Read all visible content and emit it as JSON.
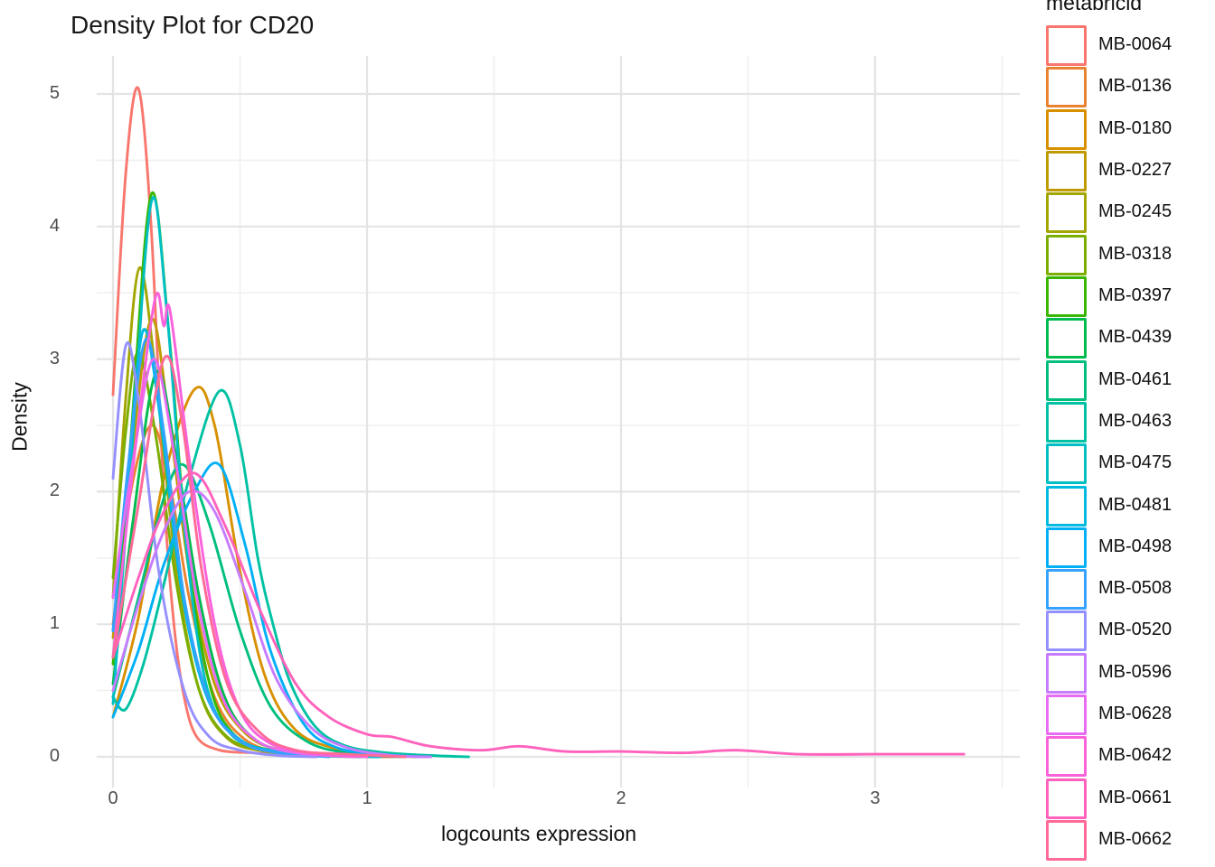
{
  "title": "Density Plot for CD20",
  "axes": {
    "x": {
      "label": "logcounts expression",
      "major_ticks": [
        0,
        1,
        2,
        3
      ],
      "minor_ticks": [
        0.5,
        1.5,
        2.5,
        3.5
      ]
    },
    "y": {
      "label": "Density",
      "major_ticks": [
        0,
        1,
        2,
        3,
        4,
        5
      ],
      "minor_ticks": [
        0.5,
        1.5,
        2.5,
        3.5,
        4.5
      ]
    }
  },
  "legend": {
    "title": "metabricid",
    "items": [
      "MB-0064",
      "MB-0136",
      "MB-0180",
      "MB-0227",
      "MB-0245",
      "MB-0318",
      "MB-0397",
      "MB-0439",
      "MB-0461",
      "MB-0463",
      "MB-0475",
      "MB-0481",
      "MB-0498",
      "MB-0508",
      "MB-0520",
      "MB-0596",
      "MB-0628",
      "MB-0642",
      "MB-0661",
      "MB-0662"
    ]
  },
  "colors": {
    "grid_major": "#e4e4e4",
    "grid_minor": "#f0f0f0",
    "tick_label": "#4d4d4d",
    "text": "#111111"
  },
  "chart_data": {
    "type": "line",
    "title": "Density Plot for CD20",
    "xlabel": "logcounts expression",
    "ylabel": "Density",
    "xlim": [
      -0.06,
      3.57
    ],
    "ylim": [
      -0.23,
      5.29
    ],
    "grid": true,
    "legend_title": "metabricid",
    "legend_position": "right",
    "series": [
      {
        "name": "MB-0064",
        "color": "#F8766D",
        "points": [
          [
            0,
            2.73
          ],
          [
            0.05,
            4.4
          ],
          [
            0.1,
            5.04
          ],
          [
            0.15,
            4.0
          ],
          [
            0.2,
            2.0
          ],
          [
            0.24,
            1.0
          ],
          [
            0.28,
            0.45
          ],
          [
            0.33,
            0.15
          ],
          [
            0.42,
            0.05
          ],
          [
            0.55,
            0.03
          ],
          [
            0.72,
            0.01
          ],
          [
            0.95,
            0.005
          ],
          [
            1.1,
            0
          ]
        ]
      },
      {
        "name": "MB-0136",
        "color": "#EA8331",
        "points": [
          [
            0,
            1.0
          ],
          [
            0.07,
            2.0
          ],
          [
            0.15,
            2.5
          ],
          [
            0.22,
            2.1
          ],
          [
            0.3,
            1.2
          ],
          [
            0.4,
            0.45
          ],
          [
            0.52,
            0.13
          ],
          [
            0.68,
            0.03
          ],
          [
            0.9,
            0.01
          ],
          [
            1.1,
            0
          ]
        ]
      },
      {
        "name": "MB-0180",
        "color": "#D89000",
        "points": [
          [
            0,
            0.3
          ],
          [
            0.1,
            1.05
          ],
          [
            0.2,
            2.1
          ],
          [
            0.32,
            2.77
          ],
          [
            0.4,
            2.5
          ],
          [
            0.5,
            1.4
          ],
          [
            0.6,
            0.6
          ],
          [
            0.72,
            0.2
          ],
          [
            0.88,
            0.06
          ],
          [
            1.05,
            0.01
          ],
          [
            1.25,
            0
          ]
        ]
      },
      {
        "name": "MB-0227",
        "color": "#C09B00",
        "points": [
          [
            0,
            0.9
          ],
          [
            0.07,
            2.2
          ],
          [
            0.15,
            3.3
          ],
          [
            0.22,
            2.55
          ],
          [
            0.3,
            1.4
          ],
          [
            0.4,
            0.55
          ],
          [
            0.52,
            0.18
          ],
          [
            0.66,
            0.05
          ],
          [
            0.85,
            0.01
          ],
          [
            1.05,
            0
          ]
        ]
      },
      {
        "name": "MB-0245",
        "color": "#A3A500",
        "points": [
          [
            0,
            1.2
          ],
          [
            0.05,
            2.7
          ],
          [
            0.105,
            3.69
          ],
          [
            0.17,
            2.85
          ],
          [
            0.25,
            1.4
          ],
          [
            0.34,
            0.5
          ],
          [
            0.45,
            0.14
          ],
          [
            0.6,
            0.04
          ],
          [
            0.8,
            0.01
          ],
          [
            1.0,
            0
          ]
        ]
      },
      {
        "name": "MB-0318",
        "color": "#7CAE00",
        "points": [
          [
            0,
            1.35
          ],
          [
            0.05,
            2.45
          ],
          [
            0.1,
            3.05
          ],
          [
            0.17,
            2.4
          ],
          [
            0.25,
            1.3
          ],
          [
            0.34,
            0.5
          ],
          [
            0.45,
            0.15
          ],
          [
            0.6,
            0.05
          ],
          [
            0.78,
            0.01
          ],
          [
            1.0,
            0
          ]
        ]
      },
      {
        "name": "MB-0397",
        "color": "#39B600",
        "points": [
          [
            0,
            0.7
          ],
          [
            0.07,
            2.4
          ],
          [
            0.15,
            4.24
          ],
          [
            0.22,
            3.2
          ],
          [
            0.29,
            1.6
          ],
          [
            0.38,
            0.55
          ],
          [
            0.48,
            0.16
          ],
          [
            0.62,
            0.05
          ],
          [
            0.82,
            0.01
          ],
          [
            1.05,
            0
          ]
        ]
      },
      {
        "name": "MB-0439",
        "color": "#00BB4E",
        "points": [
          [
            0,
            0.55
          ],
          [
            0.08,
            1.8
          ],
          [
            0.17,
            2.9
          ],
          [
            0.25,
            2.25
          ],
          [
            0.34,
            1.2
          ],
          [
            0.44,
            0.45
          ],
          [
            0.56,
            0.13
          ],
          [
            0.72,
            0.03
          ],
          [
            0.95,
            0.01
          ],
          [
            1.15,
            0
          ]
        ]
      },
      {
        "name": "MB-0461",
        "color": "#00BF7D",
        "points": [
          [
            0,
            0.45
          ],
          [
            0.1,
            1.2
          ],
          [
            0.2,
            1.95
          ],
          [
            0.28,
            2.2
          ],
          [
            0.38,
            1.75
          ],
          [
            0.5,
            0.95
          ],
          [
            0.62,
            0.38
          ],
          [
            0.76,
            0.12
          ],
          [
            0.92,
            0.03
          ],
          [
            1.15,
            0
          ]
        ]
      },
      {
        "name": "MB-0463",
        "color": "#00C1A3",
        "points": [
          [
            0,
            0.45
          ],
          [
            0.05,
            0.36
          ],
          [
            0.12,
            0.7
          ],
          [
            0.2,
            1.3
          ],
          [
            0.3,
            2.1
          ],
          [
            0.42,
            2.76
          ],
          [
            0.5,
            2.35
          ],
          [
            0.57,
            1.5
          ],
          [
            0.63,
            1.0
          ],
          [
            0.7,
            0.55
          ],
          [
            0.8,
            0.22
          ],
          [
            0.92,
            0.08
          ],
          [
            1.08,
            0.03
          ],
          [
            1.25,
            0.01
          ],
          [
            1.4,
            0
          ]
        ]
      },
      {
        "name": "MB-0475",
        "color": "#00BFC4",
        "points": [
          [
            0,
            0.4
          ],
          [
            0.07,
            2.2
          ],
          [
            0.15,
            4.18
          ],
          [
            0.21,
            3.4
          ],
          [
            0.28,
            1.75
          ],
          [
            0.36,
            0.6
          ],
          [
            0.46,
            0.18
          ],
          [
            0.6,
            0.05
          ],
          [
            0.8,
            0.01
          ],
          [
            1.0,
            0
          ]
        ]
      },
      {
        "name": "MB-0481",
        "color": "#00BAE0",
        "points": [
          [
            0,
            0.95
          ],
          [
            0.06,
            2.15
          ],
          [
            0.12,
            3.22
          ],
          [
            0.19,
            2.5
          ],
          [
            0.27,
            1.25
          ],
          [
            0.37,
            0.45
          ],
          [
            0.5,
            0.13
          ],
          [
            0.65,
            0.04
          ],
          [
            0.85,
            0.01
          ],
          [
            1.05,
            0
          ]
        ]
      },
      {
        "name": "MB-0498",
        "color": "#00B0F6",
        "points": [
          [
            0,
            0.3
          ],
          [
            0.1,
            0.8
          ],
          [
            0.2,
            1.45
          ],
          [
            0.32,
            2.0
          ],
          [
            0.42,
            2.2
          ],
          [
            0.52,
            1.6
          ],
          [
            0.62,
            0.8
          ],
          [
            0.75,
            0.25
          ],
          [
            0.88,
            0.07
          ],
          [
            1.05,
            0.02
          ],
          [
            1.2,
            0
          ]
        ]
      },
      {
        "name": "MB-0508",
        "color": "#35A2FF",
        "points": [
          [
            0,
            0.95
          ],
          [
            0.06,
            2.2
          ],
          [
            0.13,
            3.15
          ],
          [
            0.2,
            2.45
          ],
          [
            0.28,
            1.2
          ],
          [
            0.38,
            0.42
          ],
          [
            0.5,
            0.12
          ],
          [
            0.65,
            0.03
          ],
          [
            0.85,
            0
          ]
        ]
      },
      {
        "name": "MB-0520",
        "color": "#9590FF",
        "points": [
          [
            0,
            2.1
          ],
          [
            0.05,
            3.1
          ],
          [
            0.1,
            2.7
          ],
          [
            0.18,
            1.4
          ],
          [
            0.28,
            0.5
          ],
          [
            0.38,
            0.15
          ],
          [
            0.5,
            0.05
          ],
          [
            0.65,
            0.01
          ],
          [
            0.8,
            0
          ]
        ]
      },
      {
        "name": "MB-0596",
        "color": "#C77CFF",
        "points": [
          [
            0,
            0.5
          ],
          [
            0.1,
            1.15
          ],
          [
            0.2,
            1.7
          ],
          [
            0.3,
            2.0
          ],
          [
            0.4,
            1.85
          ],
          [
            0.52,
            1.25
          ],
          [
            0.64,
            0.6
          ],
          [
            0.78,
            0.22
          ],
          [
            0.92,
            0.07
          ],
          [
            1.1,
            0.01
          ],
          [
            1.25,
            0
          ]
        ]
      },
      {
        "name": "MB-0628",
        "color": "#E76BF3",
        "points": [
          [
            0,
            1.2
          ],
          [
            0.08,
            2.25
          ],
          [
            0.16,
            3.0
          ],
          [
            0.24,
            2.3
          ],
          [
            0.33,
            1.2
          ],
          [
            0.43,
            0.45
          ],
          [
            0.56,
            0.13
          ],
          [
            0.72,
            0.03
          ],
          [
            0.95,
            0
          ]
        ]
      },
      {
        "name": "MB-0642",
        "color": "#FA62DB",
        "points": [
          [
            0,
            0.75
          ],
          [
            0.08,
            2.2
          ],
          [
            0.165,
            3.45
          ],
          [
            0.2,
            3.25
          ],
          [
            0.225,
            3.36
          ],
          [
            0.3,
            2.25
          ],
          [
            0.4,
            1.0
          ],
          [
            0.5,
            0.35
          ],
          [
            0.62,
            0.1
          ],
          [
            0.8,
            0.02
          ],
          [
            1.0,
            0
          ]
        ]
      },
      {
        "name": "MB-0661",
        "color": "#FF62BC",
        "points": [
          [
            0,
            0.75
          ],
          [
            0.1,
            1.35
          ],
          [
            0.2,
            1.85
          ],
          [
            0.32,
            2.14
          ],
          [
            0.44,
            1.75
          ],
          [
            0.58,
            1.1
          ],
          [
            0.72,
            0.55
          ],
          [
            0.85,
            0.3
          ],
          [
            1.0,
            0.17
          ],
          [
            1.1,
            0.15
          ],
          [
            1.25,
            0.08
          ],
          [
            1.45,
            0.05
          ],
          [
            1.6,
            0.08
          ],
          [
            1.78,
            0.04
          ],
          [
            2.0,
            0.04
          ],
          [
            2.25,
            0.03
          ],
          [
            2.45,
            0.05
          ],
          [
            2.7,
            0.02
          ],
          [
            3.0,
            0.02
          ],
          [
            3.2,
            0.02
          ],
          [
            3.35,
            0.02
          ]
        ]
      },
      {
        "name": "MB-0662",
        "color": "#FF6A98",
        "points": [
          [
            0,
            0.75
          ],
          [
            0.1,
            1.9
          ],
          [
            0.2,
            3.0
          ],
          [
            0.27,
            2.55
          ],
          [
            0.35,
            1.4
          ],
          [
            0.45,
            0.55
          ],
          [
            0.58,
            0.18
          ],
          [
            0.72,
            0.05
          ],
          [
            0.92,
            0.02
          ],
          [
            1.15,
            0
          ]
        ]
      }
    ]
  }
}
